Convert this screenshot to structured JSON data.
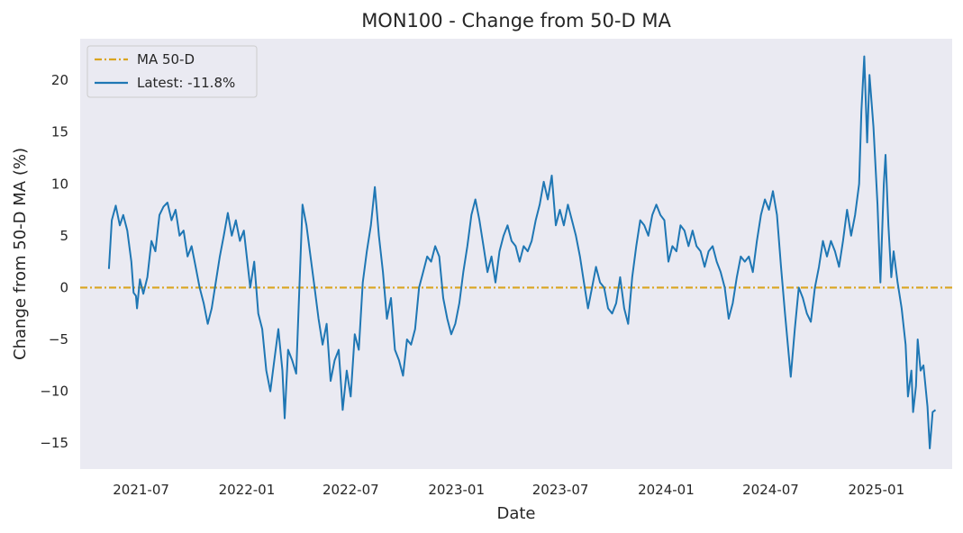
{
  "chart_data": {
    "type": "line",
    "title": "MON100 - Change from 50-D MA",
    "xlabel": "Date",
    "ylabel": "Change from 50-D MA (%)",
    "xlim": [
      "2021-03-17",
      "2025-05-13"
    ],
    "ylim": [
      -17.5,
      24
    ],
    "x_ticks": [
      "2021-07",
      "2022-01",
      "2022-07",
      "2023-01",
      "2023-07",
      "2024-01",
      "2024-07",
      "2025-01"
    ],
    "y_ticks": [
      -15,
      -10,
      -5,
      0,
      5,
      10,
      15,
      20
    ],
    "grid": false,
    "background": "#eaeaf2",
    "legend": {
      "position": "top-left",
      "entries": [
        {
          "label": "MA 50-D",
          "color": "#daa520",
          "style": "dashdot"
        },
        {
          "label": "Latest: -11.8%",
          "color": "#1f77b4",
          "style": "solid"
        }
      ]
    },
    "reference_line": {
      "name": "MA 50-D",
      "y": 0,
      "color": "#daa520"
    },
    "series": [
      {
        "name": "Latest: -11.8%",
        "color": "#1f77b4",
        "points": [
          [
            "2021-05-06",
            1.8
          ],
          [
            "2021-05-11",
            6.5
          ],
          [
            "2021-05-18",
            7.9
          ],
          [
            "2021-05-25",
            6.0
          ],
          [
            "2021-05-31",
            7.0
          ],
          [
            "2021-06-07",
            5.5
          ],
          [
            "2021-06-14",
            2.5
          ],
          [
            "2021-06-18",
            -0.5
          ],
          [
            "2021-06-22",
            -0.8
          ],
          [
            "2021-06-24",
            -2.0
          ],
          [
            "2021-06-29",
            0.8
          ],
          [
            "2021-07-05",
            -0.6
          ],
          [
            "2021-07-12",
            1.0
          ],
          [
            "2021-07-19",
            4.5
          ],
          [
            "2021-07-26",
            3.5
          ],
          [
            "2021-08-02",
            7.0
          ],
          [
            "2021-08-09",
            7.8
          ],
          [
            "2021-08-16",
            8.2
          ],
          [
            "2021-08-23",
            6.5
          ],
          [
            "2021-08-30",
            7.5
          ],
          [
            "2021-09-06",
            5.0
          ],
          [
            "2021-09-13",
            5.5
          ],
          [
            "2021-09-20",
            3.0
          ],
          [
            "2021-09-27",
            4.0
          ],
          [
            "2021-10-04",
            2.0
          ],
          [
            "2021-10-11",
            0.0
          ],
          [
            "2021-10-18",
            -1.5
          ],
          [
            "2021-10-25",
            -3.5
          ],
          [
            "2021-11-01",
            -2.0
          ],
          [
            "2021-11-08",
            0.5
          ],
          [
            "2021-11-15",
            3.0
          ],
          [
            "2021-11-22",
            5.0
          ],
          [
            "2021-11-29",
            7.2
          ],
          [
            "2021-12-06",
            5.0
          ],
          [
            "2021-12-13",
            6.5
          ],
          [
            "2021-12-20",
            4.5
          ],
          [
            "2021-12-27",
            5.5
          ],
          [
            "2022-01-03",
            2.0
          ],
          [
            "2022-01-07",
            0.0
          ],
          [
            "2022-01-14",
            2.5
          ],
          [
            "2022-01-21",
            -2.5
          ],
          [
            "2022-01-28",
            -4.0
          ],
          [
            "2022-02-04",
            -8.0
          ],
          [
            "2022-02-11",
            -10.0
          ],
          [
            "2022-02-18",
            -7.0
          ],
          [
            "2022-02-25",
            -4.0
          ],
          [
            "2022-03-04",
            -8.0
          ],
          [
            "2022-03-08",
            -12.6
          ],
          [
            "2022-03-14",
            -6.0
          ],
          [
            "2022-03-21",
            -7.0
          ],
          [
            "2022-03-28",
            -8.3
          ],
          [
            "2022-04-04",
            2.0
          ],
          [
            "2022-04-08",
            8.0
          ],
          [
            "2022-04-15",
            6.0
          ],
          [
            "2022-04-22",
            3.0
          ],
          [
            "2022-04-29",
            0.0
          ],
          [
            "2022-05-06",
            -3.0
          ],
          [
            "2022-05-13",
            -5.5
          ],
          [
            "2022-05-20",
            -3.5
          ],
          [
            "2022-05-27",
            -9.0
          ],
          [
            "2022-06-03",
            -7.0
          ],
          [
            "2022-06-10",
            -6.0
          ],
          [
            "2022-06-17",
            -11.8
          ],
          [
            "2022-06-24",
            -8.0
          ],
          [
            "2022-07-01",
            -10.5
          ],
          [
            "2022-07-08",
            -4.5
          ],
          [
            "2022-07-15",
            -6.0
          ],
          [
            "2022-07-22",
            0.5
          ],
          [
            "2022-07-29",
            3.5
          ],
          [
            "2022-08-05",
            6.0
          ],
          [
            "2022-08-12",
            9.7
          ],
          [
            "2022-08-19",
            5.0
          ],
          [
            "2022-08-26",
            1.5
          ],
          [
            "2022-09-02",
            -3.0
          ],
          [
            "2022-09-09",
            -1.0
          ],
          [
            "2022-09-16",
            -6.0
          ],
          [
            "2022-09-23",
            -7.0
          ],
          [
            "2022-09-30",
            -8.5
          ],
          [
            "2022-10-07",
            -5.0
          ],
          [
            "2022-10-14",
            -5.5
          ],
          [
            "2022-10-21",
            -4.0
          ],
          [
            "2022-10-28",
            0.0
          ],
          [
            "2022-11-04",
            1.5
          ],
          [
            "2022-11-11",
            3.0
          ],
          [
            "2022-11-18",
            2.5
          ],
          [
            "2022-11-25",
            4.0
          ],
          [
            "2022-12-02",
            3.0
          ],
          [
            "2022-12-09",
            -1.0
          ],
          [
            "2022-12-16",
            -3.0
          ],
          [
            "2022-12-23",
            -4.5
          ],
          [
            "2022-12-30",
            -3.5
          ],
          [
            "2023-01-06",
            -1.5
          ],
          [
            "2023-01-13",
            1.5
          ],
          [
            "2023-01-20",
            4.0
          ],
          [
            "2023-01-27",
            7.0
          ],
          [
            "2023-02-03",
            8.5
          ],
          [
            "2023-02-10",
            6.5
          ],
          [
            "2023-02-17",
            4.0
          ],
          [
            "2023-02-24",
            1.5
          ],
          [
            "2023-03-03",
            3.0
          ],
          [
            "2023-03-10",
            0.5
          ],
          [
            "2023-03-17",
            3.5
          ],
          [
            "2023-03-24",
            5.0
          ],
          [
            "2023-03-31",
            6.0
          ],
          [
            "2023-04-07",
            4.5
          ],
          [
            "2023-04-14",
            4.0
          ],
          [
            "2023-04-21",
            2.5
          ],
          [
            "2023-04-28",
            4.0
          ],
          [
            "2023-05-05",
            3.5
          ],
          [
            "2023-05-12",
            4.5
          ],
          [
            "2023-05-19",
            6.5
          ],
          [
            "2023-05-26",
            8.0
          ],
          [
            "2023-06-02",
            10.2
          ],
          [
            "2023-06-09",
            8.5
          ],
          [
            "2023-06-16",
            10.8
          ],
          [
            "2023-06-23",
            6.0
          ],
          [
            "2023-06-30",
            7.5
          ],
          [
            "2023-07-07",
            6.0
          ],
          [
            "2023-07-14",
            8.0
          ],
          [
            "2023-07-21",
            6.5
          ],
          [
            "2023-07-28",
            5.0
          ],
          [
            "2023-08-04",
            3.0
          ],
          [
            "2023-08-11",
            0.5
          ],
          [
            "2023-08-18",
            -2.0
          ],
          [
            "2023-08-25",
            0.0
          ],
          [
            "2023-09-01",
            2.0
          ],
          [
            "2023-09-08",
            0.5
          ],
          [
            "2023-09-15",
            0.0
          ],
          [
            "2023-09-22",
            -2.0
          ],
          [
            "2023-09-29",
            -2.5
          ],
          [
            "2023-10-06",
            -1.5
          ],
          [
            "2023-10-13",
            1.0
          ],
          [
            "2023-10-20",
            -2.0
          ],
          [
            "2023-10-27",
            -3.5
          ],
          [
            "2023-11-03",
            1.0
          ],
          [
            "2023-11-10",
            4.0
          ],
          [
            "2023-11-17",
            6.5
          ],
          [
            "2023-11-24",
            6.0
          ],
          [
            "2023-12-01",
            5.0
          ],
          [
            "2023-12-08",
            7.0
          ],
          [
            "2023-12-15",
            8.0
          ],
          [
            "2023-12-22",
            7.0
          ],
          [
            "2023-12-29",
            6.5
          ],
          [
            "2024-01-05",
            2.5
          ],
          [
            "2024-01-12",
            4.0
          ],
          [
            "2024-01-19",
            3.5
          ],
          [
            "2024-01-26",
            6.0
          ],
          [
            "2024-02-02",
            5.5
          ],
          [
            "2024-02-09",
            4.0
          ],
          [
            "2024-02-16",
            5.5
          ],
          [
            "2024-02-23",
            4.0
          ],
          [
            "2024-03-01",
            3.5
          ],
          [
            "2024-03-08",
            2.0
          ],
          [
            "2024-03-15",
            3.5
          ],
          [
            "2024-03-22",
            4.0
          ],
          [
            "2024-03-29",
            2.5
          ],
          [
            "2024-04-05",
            1.5
          ],
          [
            "2024-04-12",
            0.0
          ],
          [
            "2024-04-19",
            -3.0
          ],
          [
            "2024-04-26",
            -1.5
          ],
          [
            "2024-05-03",
            1.0
          ],
          [
            "2024-05-10",
            3.0
          ],
          [
            "2024-05-17",
            2.5
          ],
          [
            "2024-05-24",
            3.0
          ],
          [
            "2024-05-31",
            1.5
          ],
          [
            "2024-06-07",
            4.5
          ],
          [
            "2024-06-14",
            7.0
          ],
          [
            "2024-06-21",
            8.5
          ],
          [
            "2024-06-28",
            7.5
          ],
          [
            "2024-07-05",
            9.3
          ],
          [
            "2024-07-12",
            7.0
          ],
          [
            "2024-07-19",
            2.0
          ],
          [
            "2024-07-26",
            -2.5
          ],
          [
            "2024-08-05",
            -8.6
          ],
          [
            "2024-08-12",
            -4.0
          ],
          [
            "2024-08-19",
            0.0
          ],
          [
            "2024-08-26",
            -1.0
          ],
          [
            "2024-09-02",
            -2.5
          ],
          [
            "2024-09-09",
            -3.3
          ],
          [
            "2024-09-16",
            0.0
          ],
          [
            "2024-09-23",
            2.0
          ],
          [
            "2024-09-30",
            4.5
          ],
          [
            "2024-10-07",
            3.0
          ],
          [
            "2024-10-14",
            4.5
          ],
          [
            "2024-10-21",
            3.5
          ],
          [
            "2024-10-28",
            2.0
          ],
          [
            "2024-11-04",
            4.5
          ],
          [
            "2024-11-11",
            7.5
          ],
          [
            "2024-11-18",
            5.0
          ],
          [
            "2024-11-25",
            7.0
          ],
          [
            "2024-12-02",
            10.0
          ],
          [
            "2024-12-06",
            17.0
          ],
          [
            "2024-12-11",
            22.3
          ],
          [
            "2024-12-16",
            14.0
          ],
          [
            "2024-12-20",
            20.5
          ],
          [
            "2024-12-27",
            15.5
          ],
          [
            "2025-01-03",
            8.0
          ],
          [
            "2025-01-08",
            0.5
          ],
          [
            "2025-01-14",
            10.0
          ],
          [
            "2025-01-17",
            12.8
          ],
          [
            "2025-01-22",
            6.0
          ],
          [
            "2025-01-27",
            1.0
          ],
          [
            "2025-01-31",
            3.5
          ],
          [
            "2025-02-07",
            0.5
          ],
          [
            "2025-02-14",
            -2.0
          ],
          [
            "2025-02-21",
            -5.5
          ],
          [
            "2025-02-25",
            -10.5
          ],
          [
            "2025-03-03",
            -8.0
          ],
          [
            "2025-03-06",
            -12.0
          ],
          [
            "2025-03-11",
            -9.5
          ],
          [
            "2025-03-14",
            -5.0
          ],
          [
            "2025-03-19",
            -8.0
          ],
          [
            "2025-03-24",
            -7.5
          ],
          [
            "2025-03-31",
            -11.5
          ],
          [
            "2025-04-04",
            -15.5
          ],
          [
            "2025-04-09",
            -12.0
          ],
          [
            "2025-04-14",
            -11.8
          ]
        ]
      }
    ]
  }
}
